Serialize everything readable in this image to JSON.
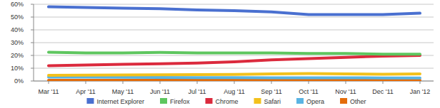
{
  "chart_data": {
    "type": "line",
    "categories": [
      "Mar '11",
      "Apr '11",
      "May '11",
      "Jun '11",
      "Jul '11",
      "Aug '11",
      "Sep '11",
      "Oct '11",
      "Nov '11",
      "Dec '11",
      "Jan '12"
    ],
    "series": [
      {
        "name": "Internet Explorer",
        "color": "#4a70d0",
        "values": [
          58,
          57.5,
          57,
          56.5,
          55.5,
          55,
          54,
          52,
          52,
          52,
          53
        ]
      },
      {
        "name": "Firefox",
        "color": "#5ec65f",
        "values": [
          22.5,
          22,
          22,
          22.3,
          22,
          22,
          22,
          21.5,
          21.5,
          21,
          21
        ]
      },
      {
        "name": "Chrome",
        "color": "#db2a3d",
        "values": [
          12,
          12.5,
          13,
          13.5,
          14,
          15,
          16.5,
          17.5,
          18.5,
          19.5,
          20
        ]
      },
      {
        "name": "Safari",
        "color": "#f3c11c",
        "values": [
          4.5,
          4.6,
          4.7,
          4.8,
          5,
          5.2,
          5.5,
          5.8,
          5.5,
          5.3,
          5.5
        ]
      },
      {
        "name": "Opera",
        "color": "#5ab4e3",
        "values": [
          3,
          3,
          2.9,
          2.8,
          2.7,
          2.6,
          2.5,
          2.5,
          2.5,
          2.4,
          2.4
        ]
      },
      {
        "name": "Other",
        "color": "#e46c0a",
        "values": [
          0.5,
          0.5,
          0.5,
          0.5,
          0.5,
          0.5,
          0.5,
          0.5,
          0.5,
          0.5,
          0.5
        ]
      }
    ],
    "ylim": [
      0,
      60
    ],
    "yticks": [
      {
        "value": 0,
        "label": "0%"
      },
      {
        "value": 10,
        "label": "10%"
      },
      {
        "value": 20,
        "label": "20%"
      },
      {
        "value": 30,
        "label": "30%"
      },
      {
        "value": 40,
        "label": "40%"
      },
      {
        "value": 50,
        "label": "50%"
      },
      {
        "value": 60,
        "label": "60%"
      }
    ],
    "grid": true,
    "legend": "bottom"
  }
}
